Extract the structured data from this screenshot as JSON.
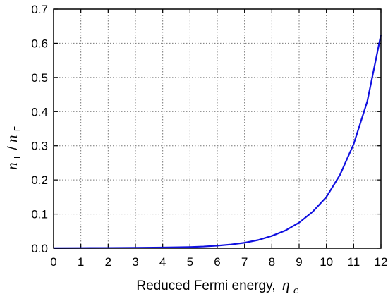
{
  "chart_data": {
    "type": "line",
    "title": "",
    "xlabel": "Reduced Fermi energy,",
    "xlabel_symbol": "η",
    "xlabel_subscript": "c",
    "ylabel_num_symbol": "n",
    "ylabel_num_subscript": "L",
    "ylabel_slash": "/",
    "ylabel_den_symbol": "n",
    "ylabel_den_subscript": "Γ",
    "xlim": [
      0,
      12
    ],
    "ylim": [
      0,
      0.7
    ],
    "grid": true,
    "x_ticks": [
      0,
      1,
      2,
      3,
      4,
      5,
      6,
      7,
      8,
      9,
      10,
      11,
      12
    ],
    "x_tick_labels": [
      "0",
      "1",
      "2",
      "3",
      "4",
      "5",
      "6",
      "7",
      "8",
      "9",
      "10",
      "11",
      "12"
    ],
    "y_ticks": [
      0,
      0.1,
      0.2,
      0.3,
      0.4,
      0.5,
      0.6,
      0.7
    ],
    "y_tick_labels": [
      "0.0",
      "0.1",
      "0.2",
      "0.3",
      "0.4",
      "0.5",
      "0.6",
      "0.7"
    ],
    "series": [
      {
        "color": "#1010e0",
        "x": [
          0,
          1,
          2,
          3,
          4,
          5,
          5.5,
          6,
          6.5,
          7,
          7.5,
          8,
          8.5,
          9,
          9.5,
          10,
          10.5,
          11,
          11.5,
          12
        ],
        "y": [
          0.0003,
          0.0006,
          0.0009,
          0.0013,
          0.002,
          0.0035,
          0.005,
          0.0075,
          0.011,
          0.016,
          0.024,
          0.036,
          0.052,
          0.075,
          0.107,
          0.15,
          0.215,
          0.305,
          0.43,
          0.625
        ]
      }
    ]
  }
}
